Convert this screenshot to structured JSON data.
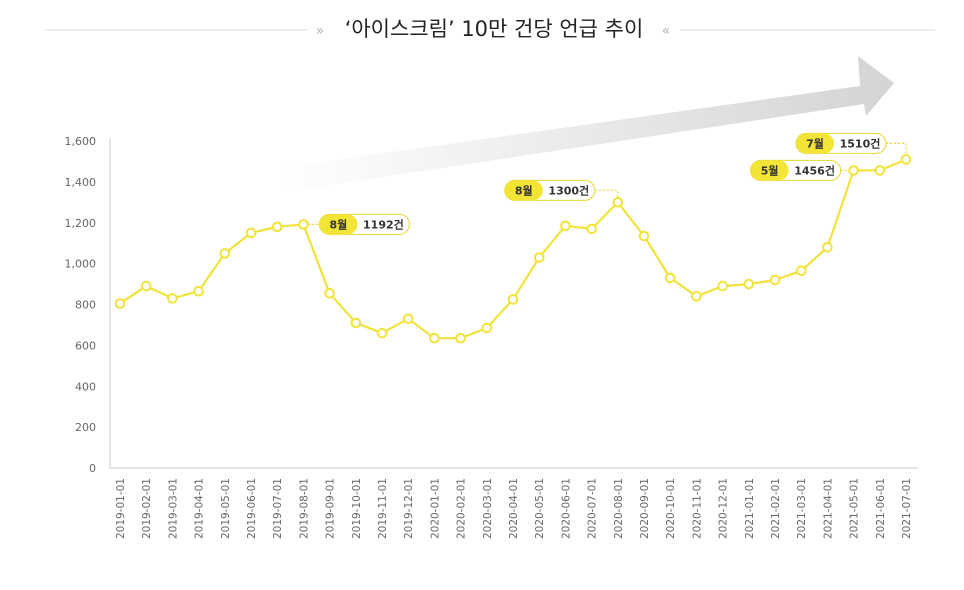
{
  "chart_data": {
    "type": "line",
    "title": "‘아이스크림’ 10만 건당 언급 추이",
    "title_deco_left": "»",
    "title_deco_right": "«",
    "ylim": [
      0,
      1600
    ],
    "yticks": [
      "0",
      "200",
      "400",
      "600",
      "800",
      "1,000",
      "1,200",
      "1,400",
      "1,600"
    ],
    "ytick_values": [
      0,
      200,
      400,
      600,
      800,
      1000,
      1200,
      1400,
      1600
    ],
    "x": [
      "2019-01-01",
      "2019-02-01",
      "2019-03-01",
      "2019-04-01",
      "2019-05-01",
      "2019-06-01",
      "2019-07-01",
      "2019-08-01",
      "2019-09-01",
      "2019-10-01",
      "2019-11-01",
      "2019-12-01",
      "2020-01-01",
      "2020-02-01",
      "2020-03-01",
      "2020-04-01",
      "2020-05-01",
      "2020-06-01",
      "2020-07-01",
      "2020-08-01",
      "2020-09-01",
      "2020-10-01",
      "2020-11-01",
      "2020-12-01",
      "2021-01-01",
      "2021-02-01",
      "2021-03-01",
      "2021-04-01",
      "2021-05-01",
      "2021-06-01",
      "2021-07-01"
    ],
    "series": [
      {
        "values": [
          805,
          890,
          830,
          865,
          1050,
          1150,
          1180,
          1192,
          855,
          710,
          660,
          730,
          635,
          635,
          685,
          825,
          1030,
          1185,
          1170,
          1300,
          1135,
          930,
          840,
          890,
          900,
          920,
          965,
          1080,
          1456,
          1456,
          1510
        ]
      }
    ],
    "colors": {
      "line": "#f0e43a",
      "marker_fill": "#ffffff",
      "axis": "#cccccc",
      "badge": "#f2e535",
      "badge_border": "#e8d730",
      "arrow": "#d4d4d4"
    },
    "grid": false,
    "callouts": [
      {
        "index": 7,
        "month": "8월",
        "value": "1192건"
      },
      {
        "index": 19,
        "month": "8월",
        "value": "1300건"
      },
      {
        "index": 28,
        "month": "5월",
        "value": "1456건"
      },
      {
        "index": 30,
        "month": "7월",
        "value": "1510건"
      }
    ]
  }
}
